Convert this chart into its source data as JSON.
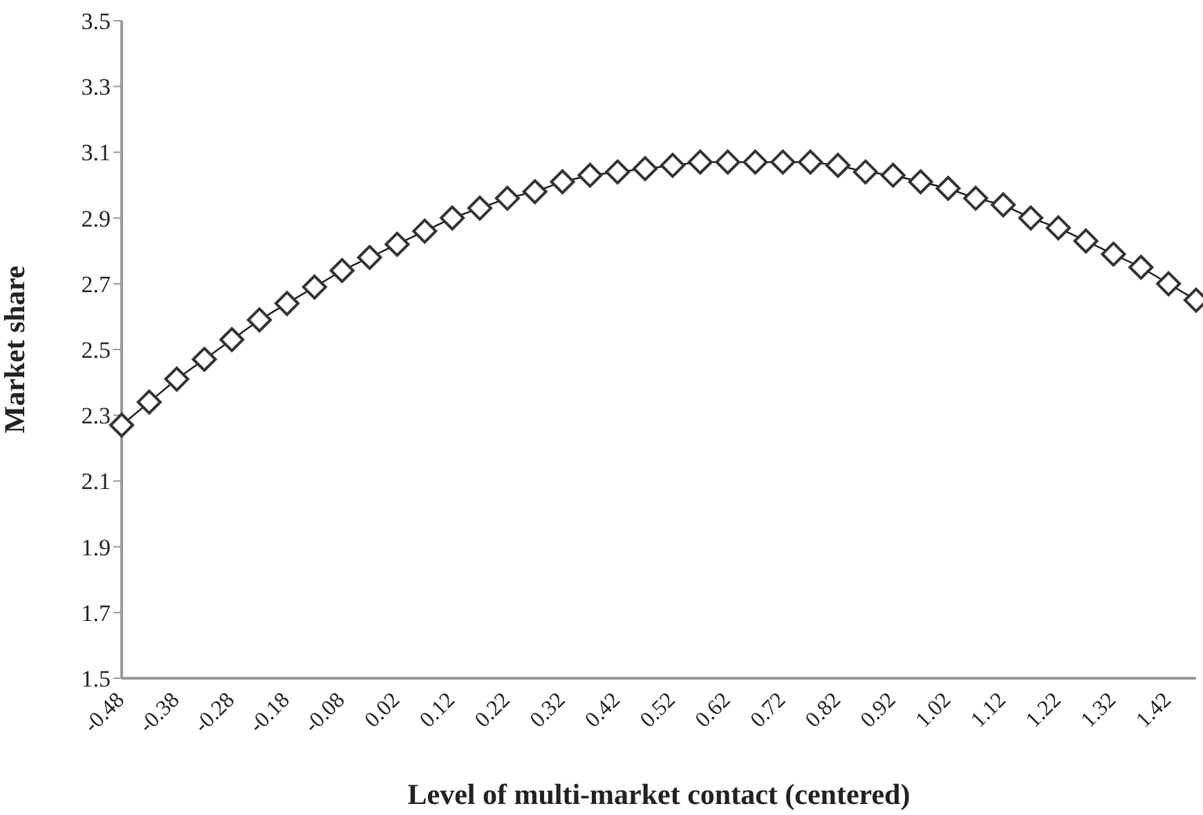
{
  "chart_data": {
    "type": "line",
    "xlabel": "Level of multi-market contact (centered)",
    "ylabel": "Market share",
    "categories": [
      "-0.48",
      null,
      "-0.38",
      null,
      "-0.28",
      null,
      "-0.18",
      null,
      "-0.08",
      null,
      "0.02",
      null,
      "0.12",
      null,
      "0.22",
      null,
      "0.32",
      null,
      "0.42",
      null,
      "0.52",
      null,
      "0.62",
      null,
      "0.72",
      null,
      "0.82",
      null,
      "0.92",
      null,
      "1.02",
      null,
      "1.12",
      null,
      "1.22",
      null,
      "1.32",
      null,
      "1.42",
      null
    ],
    "series": [
      {
        "color": "#1a1a1a",
        "values": [
          2.27,
          2.34,
          2.41,
          2.47,
          2.53,
          2.59,
          2.64,
          2.69,
          2.74,
          2.78,
          2.82,
          2.86,
          2.9,
          2.93,
          2.96,
          2.98,
          3.01,
          3.03,
          3.04,
          3.05,
          3.06,
          3.07,
          3.07,
          3.07,
          3.07,
          3.07,
          3.06,
          3.04,
          3.03,
          3.01,
          2.99,
          2.96,
          2.94,
          2.9,
          2.87,
          2.83,
          2.79,
          2.75,
          2.7,
          2.65
        ]
      }
    ],
    "ylim": [
      1.5,
      3.5
    ],
    "yticks": [
      1.5,
      1.7,
      1.9,
      2.1,
      2.3,
      2.5,
      2.7,
      2.9,
      3.1,
      3.3,
      3.5
    ],
    "grid": false,
    "legend": false,
    "marker": "diamond",
    "line_style": "solid"
  }
}
